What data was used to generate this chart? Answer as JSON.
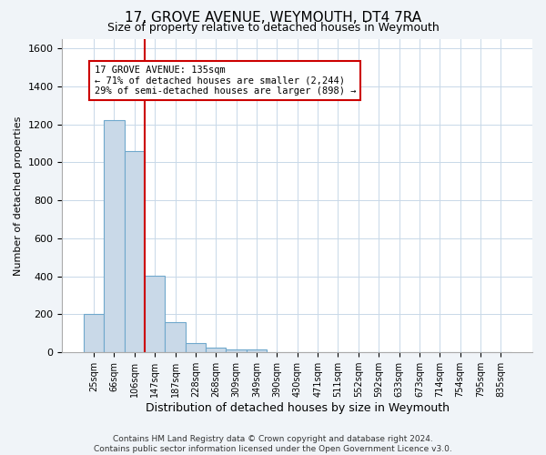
{
  "title": "17, GROVE AVENUE, WEYMOUTH, DT4 7RA",
  "subtitle": "Size of property relative to detached houses in Weymouth",
  "xlabel": "Distribution of detached houses by size in Weymouth",
  "ylabel": "Number of detached properties",
  "categories": [
    "25sqm",
    "66sqm",
    "106sqm",
    "147sqm",
    "187sqm",
    "228sqm",
    "268sqm",
    "309sqm",
    "349sqm",
    "390sqm",
    "430sqm",
    "471sqm",
    "511sqm",
    "552sqm",
    "592sqm",
    "633sqm",
    "673sqm",
    "714sqm",
    "754sqm",
    "795sqm",
    "835sqm"
  ],
  "values": [
    200,
    1220,
    1060,
    405,
    160,
    50,
    25,
    15,
    15,
    0,
    0,
    0,
    0,
    0,
    0,
    0,
    0,
    0,
    0,
    0,
    0
  ],
  "bar_color": "#c9d9e8",
  "bar_edge_color": "#6fa8cc",
  "annotation_line1": "17 GROVE AVENUE: 135sqm",
  "annotation_line2": "← 71% of detached houses are smaller (2,244)",
  "annotation_line3": "29% of semi-detached houses are larger (898) →",
  "annotation_box_color": "#ffffff",
  "annotation_box_edge_color": "#cc0000",
  "vline_color": "#cc0000",
  "ylim": [
    0,
    1650
  ],
  "yticks": [
    0,
    200,
    400,
    600,
    800,
    1000,
    1200,
    1400,
    1600
  ],
  "footnote": "Contains HM Land Registry data © Crown copyright and database right 2024.\nContains public sector information licensed under the Open Government Licence v3.0.",
  "background_color": "#f0f4f8",
  "plot_background_color": "#ffffff",
  "grid_color": "#c8d8e8",
  "vline_bar_index": 2.5
}
